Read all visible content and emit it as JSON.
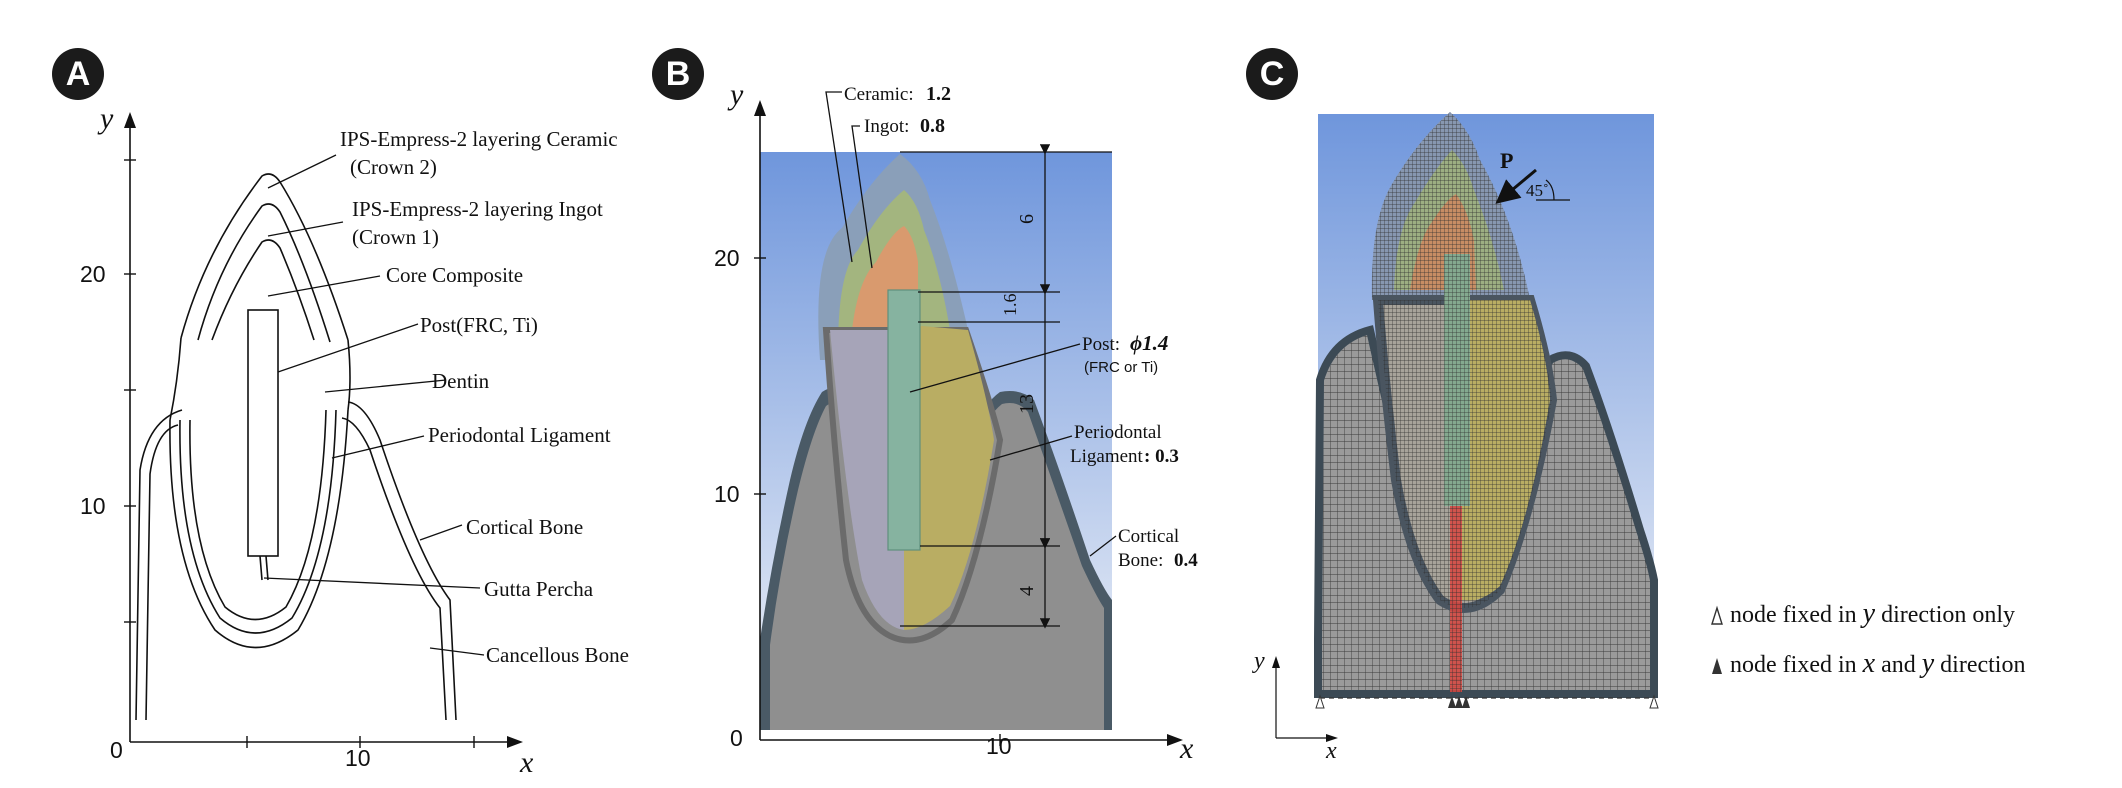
{
  "panels": [
    {
      "badge": "A"
    },
    {
      "badge": "B"
    },
    {
      "badge": "C"
    }
  ],
  "panel_a": {
    "y_axis": "y",
    "x_axis": "x",
    "y_ticks": [
      "20",
      "10"
    ],
    "x_ticks": [
      "0",
      "10"
    ],
    "labels": {
      "crown2_line1": "IPS-Empress-2 layering Ceramic",
      "crown2_line2": "(Crown 2)",
      "crown1_line1": "IPS-Empress-2 layering Ingot",
      "crown1_line2": "(Crown 1)",
      "core": "Core Composite",
      "post": "Post(FRC, Ti)",
      "dentin": "Dentin",
      "pdl": "Periodontal Ligament",
      "cortical": "Cortical Bone",
      "gutta": "Gutta Percha",
      "cancellous": "Cancellous Bone"
    }
  },
  "panel_b": {
    "y_axis": "y",
    "x_axis": "x",
    "y_ticks": [
      "20",
      "10",
      "0"
    ],
    "x_ticks": [
      "10"
    ],
    "labels": {
      "ceramic": "Ceramic:",
      "ceramic_val": "1.2",
      "ingot": "Ingot:",
      "ingot_val": "0.8",
      "post": "Post:",
      "post_val": "ϕ1.4",
      "post_sub": "(FRC or Ti)",
      "pdl_line1": "Periodontal",
      "pdl_line2": "Ligament",
      "pdl_val": ": 0.3",
      "cortical_line1": "Cortical",
      "cortical_line2": "Bone:",
      "cortical_val": "0.4"
    },
    "dimensions": [
      "6",
      "1.6",
      "13",
      "4"
    ]
  },
  "panel_c": {
    "load_label": "P",
    "angle_label": "45˚",
    "y_axis": "y",
    "x_axis": "x",
    "legend": {
      "row1_prefix": "node fixed in",
      "row1_var": "y",
      "row1_suffix": "direction only",
      "row2_prefix": "node fixed in",
      "row2_var1": "x",
      "row2_and": "and",
      "row2_var2": "y",
      "row2_suffix": "direction"
    }
  },
  "colors": {
    "badge": "#1b1b1b",
    "sky_top": "#6f96dc",
    "sky_bottom": "#e9eef7",
    "bone": "#8f8f8f",
    "cortical": "#4a5a66",
    "dentin_yellow": "#b9ad63",
    "core_gray": "#a6a4b8",
    "post_green": "#86b3a0",
    "ingot_green": "#a3b57f",
    "ceramic_blue": "#8a9fb9",
    "core_orange": "#d99a6e",
    "gutta_red": "#d8473f"
  }
}
